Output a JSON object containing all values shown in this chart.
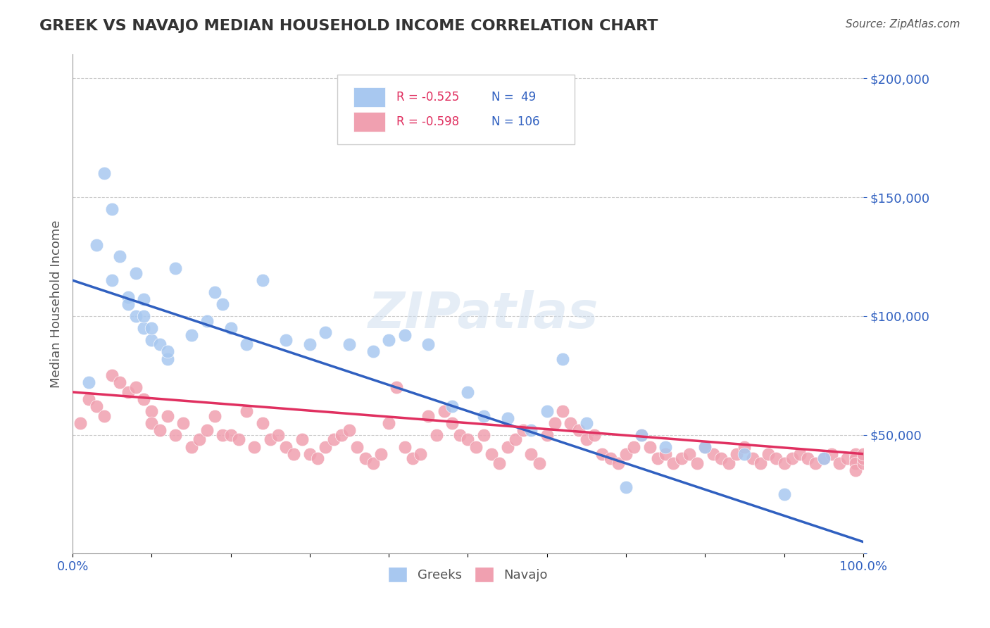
{
  "title": "GREEK VS NAVAJO MEDIAN HOUSEHOLD INCOME CORRELATION CHART",
  "source": "Source: ZipAtlas.com",
  "xlabel": "",
  "ylabel": "Median Household Income",
  "xlim": [
    0,
    100
  ],
  "ylim": [
    0,
    210000
  ],
  "yticks": [
    0,
    50000,
    100000,
    150000,
    200000
  ],
  "ytick_labels": [
    "",
    "$50,000",
    "$100,000",
    "$150,000",
    "$200,000"
  ],
  "xtick_labels": [
    "0.0%",
    "",
    "",
    "",
    "",
    "",
    "",
    "",
    "",
    "",
    "100.0%"
  ],
  "watermark": "ZIPatlas",
  "legend_r_greek": "R = -0.525",
  "legend_n_greek": "N =  49",
  "legend_r_navajo": "R = -0.598",
  "legend_n_navajo": "N = 106",
  "greek_color": "#a8c8f0",
  "navajo_color": "#f0a0b0",
  "greek_line_color": "#3060c0",
  "navajo_line_color": "#e03060",
  "greek_scatter_x": [
    2,
    3,
    4,
    5,
    5,
    6,
    7,
    7,
    8,
    8,
    9,
    9,
    9,
    10,
    10,
    11,
    12,
    12,
    13,
    15,
    17,
    18,
    19,
    20,
    22,
    24,
    27,
    30,
    32,
    35,
    38,
    40,
    42,
    45,
    48,
    50,
    52,
    55,
    58,
    60,
    62,
    65,
    70,
    72,
    75,
    80,
    85,
    90,
    95
  ],
  "greek_scatter_y": [
    72000,
    130000,
    160000,
    115000,
    145000,
    125000,
    108000,
    105000,
    100000,
    118000,
    95000,
    100000,
    107000,
    90000,
    95000,
    88000,
    82000,
    85000,
    120000,
    92000,
    98000,
    110000,
    105000,
    95000,
    88000,
    115000,
    90000,
    88000,
    93000,
    88000,
    85000,
    90000,
    92000,
    88000,
    62000,
    68000,
    58000,
    57000,
    52000,
    60000,
    82000,
    55000,
    28000,
    50000,
    45000,
    45000,
    42000,
    25000,
    40000
  ],
  "navajo_scatter_x": [
    1,
    2,
    3,
    4,
    5,
    6,
    7,
    8,
    9,
    10,
    10,
    11,
    12,
    13,
    14,
    15,
    16,
    17,
    18,
    19,
    20,
    21,
    22,
    23,
    24,
    25,
    26,
    27,
    28,
    29,
    30,
    31,
    32,
    33,
    34,
    35,
    36,
    37,
    38,
    39,
    40,
    41,
    42,
    43,
    44,
    45,
    46,
    47,
    48,
    49,
    50,
    51,
    52,
    53,
    54,
    55,
    56,
    57,
    58,
    59,
    60,
    61,
    62,
    63,
    64,
    65,
    66,
    67,
    68,
    69,
    70,
    71,
    72,
    73,
    74,
    75,
    76,
    77,
    78,
    79,
    80,
    81,
    82,
    83,
    84,
    85,
    86,
    87,
    88,
    89,
    90,
    91,
    92,
    93,
    94,
    95,
    96,
    97,
    98,
    99,
    99,
    99,
    99,
    100,
    100,
    100
  ],
  "navajo_scatter_y": [
    55000,
    65000,
    62000,
    58000,
    75000,
    72000,
    68000,
    70000,
    65000,
    60000,
    55000,
    52000,
    58000,
    50000,
    55000,
    45000,
    48000,
    52000,
    58000,
    50000,
    50000,
    48000,
    60000,
    45000,
    55000,
    48000,
    50000,
    45000,
    42000,
    48000,
    42000,
    40000,
    45000,
    48000,
    50000,
    52000,
    45000,
    40000,
    38000,
    42000,
    55000,
    70000,
    45000,
    40000,
    42000,
    58000,
    50000,
    60000,
    55000,
    50000,
    48000,
    45000,
    50000,
    42000,
    38000,
    45000,
    48000,
    52000,
    42000,
    38000,
    50000,
    55000,
    60000,
    55000,
    52000,
    48000,
    50000,
    42000,
    40000,
    38000,
    42000,
    45000,
    50000,
    45000,
    40000,
    42000,
    38000,
    40000,
    42000,
    38000,
    45000,
    42000,
    40000,
    38000,
    42000,
    45000,
    40000,
    38000,
    42000,
    40000,
    38000,
    40000,
    42000,
    40000,
    38000,
    40000,
    42000,
    38000,
    40000,
    42000,
    40000,
    38000,
    35000,
    38000,
    40000,
    42000
  ]
}
